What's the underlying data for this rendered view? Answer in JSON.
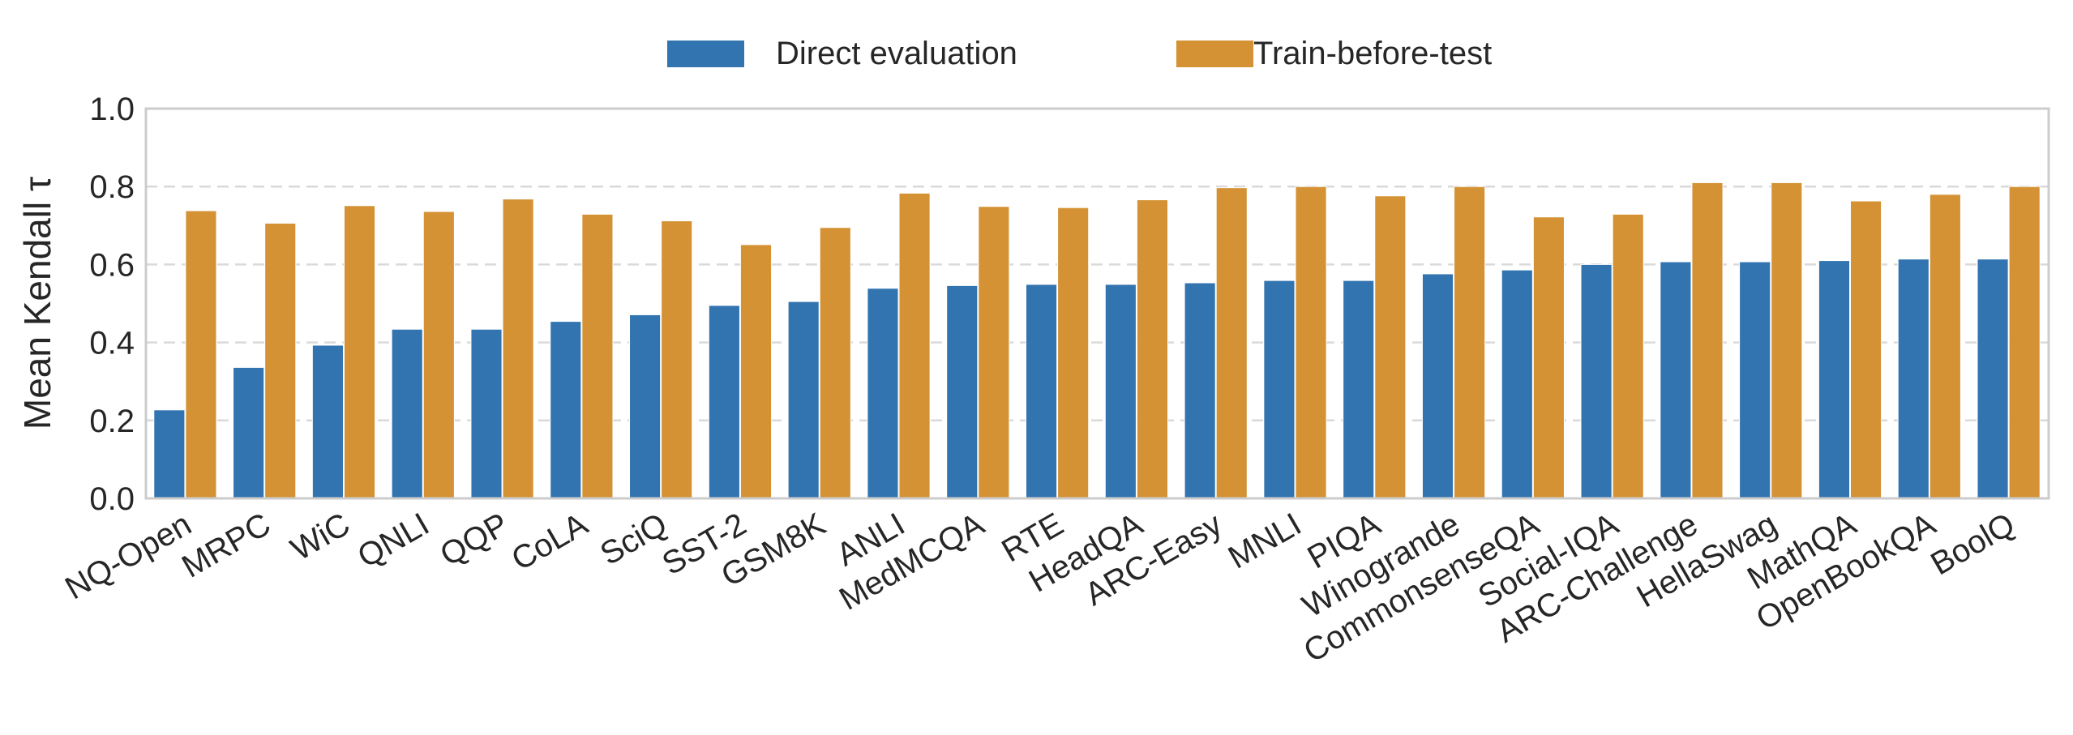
{
  "chart_data": {
    "type": "bar",
    "title": "",
    "xlabel": "",
    "ylabel": "Mean Kendall τ",
    "ylim": [
      0,
      1.0
    ],
    "yticks": [
      "0.0",
      "0.2",
      "0.4",
      "0.6",
      "0.8",
      "1.0"
    ],
    "grid": "horizontal dashed",
    "legend_position": "top-center",
    "categories": [
      "NQ-Open",
      "MRPC",
      "WiC",
      "QNLI",
      "QQP",
      "CoLA",
      "SciQ",
      "SST-2",
      "GSM8K",
      "ANLI",
      "MedMCQA",
      "RTE",
      "HeadQA",
      "ARC-Easy",
      "MNLI",
      "PIQA",
      "Winogrande",
      "CommonsenseQA",
      "Social-IQA",
      "ARC-Challenge",
      "HellaSwag",
      "MathQA",
      "OpenBookQA",
      "BoolQ"
    ],
    "series": [
      {
        "name": "Direct evaluation",
        "color": "#3274b0",
        "values": [
          0.227,
          0.336,
          0.393,
          0.434,
          0.434,
          0.454,
          0.471,
          0.495,
          0.505,
          0.539,
          0.546,
          0.549,
          0.549,
          0.553,
          0.559,
          0.559,
          0.576,
          0.586,
          0.6,
          0.607,
          0.607,
          0.61,
          0.614,
          0.614
        ]
      },
      {
        "name": "Train-before-test",
        "color": "#d49235",
        "values": [
          0.738,
          0.706,
          0.751,
          0.736,
          0.768,
          0.729,
          0.712,
          0.651,
          0.695,
          0.783,
          0.749,
          0.746,
          0.766,
          0.797,
          0.8,
          0.776,
          0.8,
          0.722,
          0.729,
          0.81,
          0.81,
          0.763,
          0.78,
          0.8
        ]
      }
    ]
  }
}
